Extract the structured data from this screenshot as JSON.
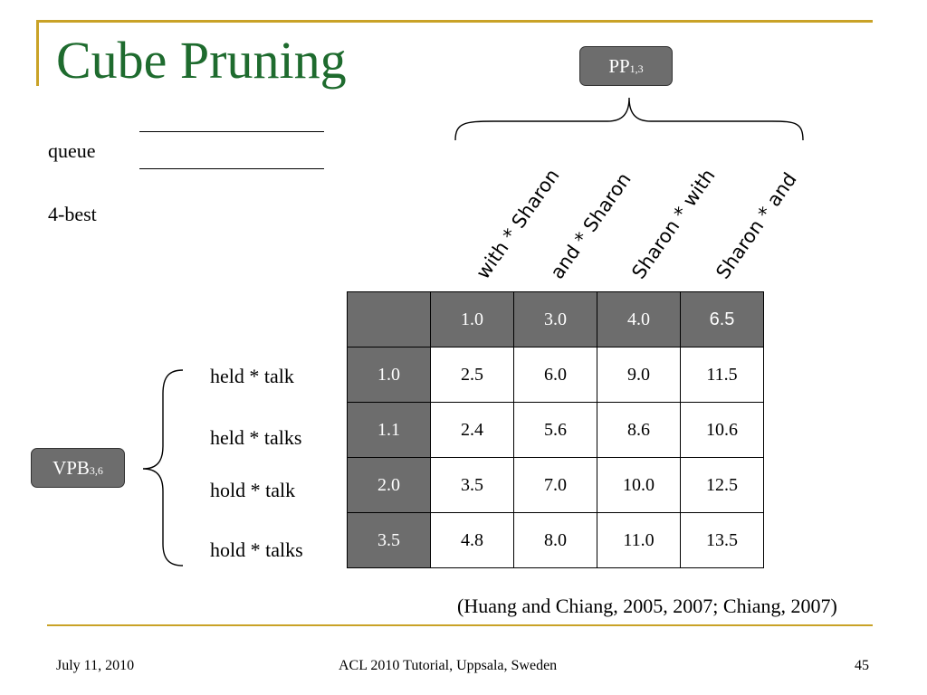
{
  "slide": {
    "title": "Cube Pruning",
    "queue_label": "queue",
    "best_label": "4-best",
    "citation": "(Huang and Chiang, 2005, 2007; Chiang, 2007)"
  },
  "pp_node": {
    "label": "PP",
    "subscript": "1,3"
  },
  "vpb_node": {
    "label": "VPB",
    "subscript": "3,6"
  },
  "columns": [
    "with * Sharon",
    "and * Sharon",
    "Sharon *  with",
    "Sharon *  and"
  ],
  "rows": [
    "held * talk",
    "held * talks",
    "hold * talk",
    "hold * talks"
  ],
  "grid": {
    "col_scores": [
      "1.0",
      "3.0",
      "4.0",
      "6.5"
    ],
    "row_scores": [
      "1.0",
      "1.1",
      "2.0",
      "3.5"
    ],
    "cells": [
      [
        "2.5",
        "6.0",
        "9.0",
        "11.5"
      ],
      [
        "2.4",
        "5.6",
        "8.6",
        "10.6"
      ],
      [
        "3.5",
        "7.0",
        "10.0",
        "12.5"
      ],
      [
        "4.8",
        "8.0",
        "11.0",
        "13.5"
      ]
    ]
  },
  "footer": {
    "date": "July 11, 2010",
    "venue": "ACL 2010 Tutorial, Uppsala, Sweden",
    "page": "45"
  }
}
